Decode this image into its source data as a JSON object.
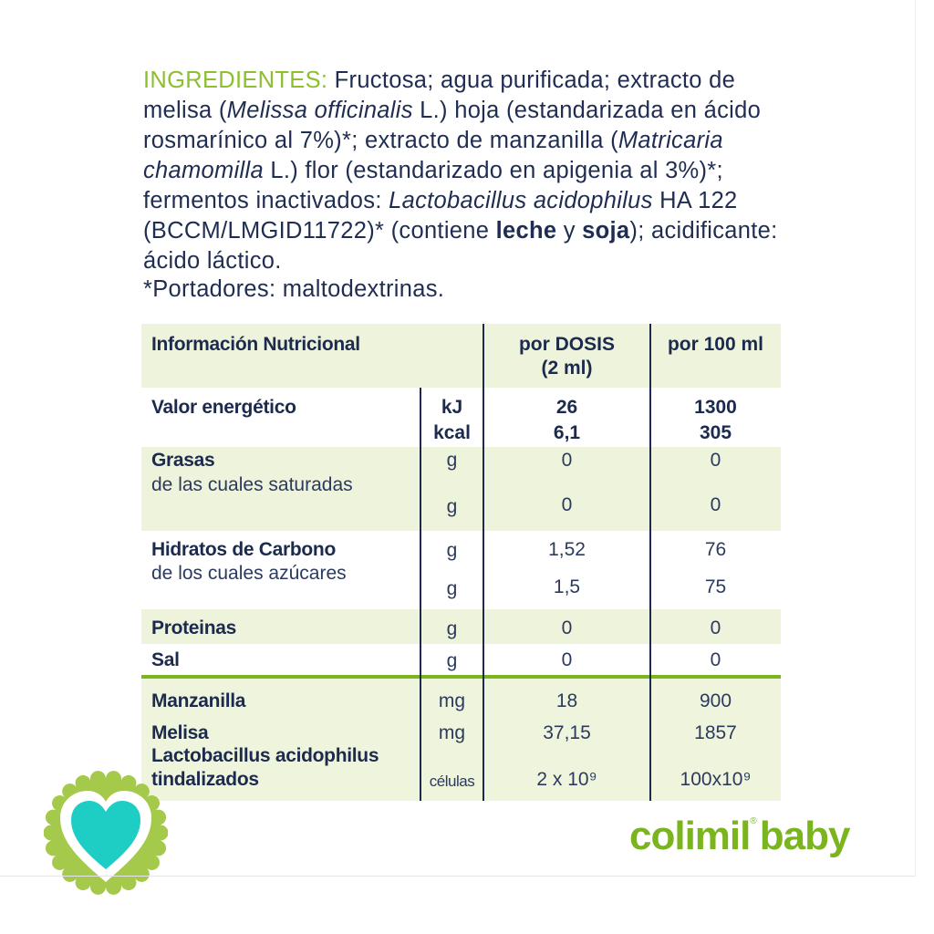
{
  "ingredients": {
    "lines": [
      [
        {
          "t": "INGREDIENTES:",
          "s": "g"
        },
        {
          "t": " Fructosa; agua purificada; extracto de",
          "s": ""
        }
      ],
      [
        {
          "t": "melisa (",
          "s": ""
        },
        {
          "t": "Melissa officinalis",
          "s": "i"
        },
        {
          "t": " L.) hoja (estandarizada en ácido",
          "s": ""
        }
      ],
      [
        {
          "t": "rosmarínico al 7%)*; extracto de manzanilla (",
          "s": ""
        },
        {
          "t": "Matricaria",
          "s": "i"
        }
      ],
      [
        {
          "t": "chamomilla",
          "s": "i"
        },
        {
          "t": " L.) flor (estandarizado en apigenia al 3%)*;",
          "s": ""
        }
      ],
      [
        {
          "t": "fermentos inactivados: ",
          "s": ""
        },
        {
          "t": "Lactobacillus acidophilus",
          "s": "i"
        },
        {
          "t": " HA 122",
          "s": ""
        }
      ],
      [
        {
          "t": "(BCCM/LMGID11722)* (contiene ",
          "s": ""
        },
        {
          "t": "leche",
          "s": "b"
        },
        {
          "t": " y ",
          "s": ""
        },
        {
          "t": "soja",
          "s": "b"
        },
        {
          "t": "); acidificante:",
          "s": ""
        }
      ],
      [
        {
          "t": "ácido láctico.",
          "s": ""
        }
      ]
    ],
    "carriers": "*Portadores: maltodextrinas."
  },
  "table": {
    "header": {
      "title": "Información Nutricional",
      "col1_line1": "por DOSIS",
      "col1_line2": "(2 ml)",
      "col2": "por 100 ml"
    },
    "energy": {
      "label": "Valor energético",
      "unit1": "kJ",
      "unit2": "kcal",
      "dose1": "26",
      "dose2": "6,1",
      "per100_1": "1300",
      "per100_2": "305"
    },
    "fat": {
      "label": "Grasas",
      "sub": "de las cuales saturadas",
      "unit": "g",
      "dose": "0",
      "per100": "0",
      "sub_unit": "g",
      "sub_dose": "0",
      "sub_per100": "0"
    },
    "carbs": {
      "label": "Hidratos de Carbono",
      "sub": "de los cuales azúcares",
      "unit": "g",
      "dose": "1,52",
      "per100": "76",
      "sub_unit": "g",
      "sub_dose": "1,5",
      "sub_per100": "75"
    },
    "protein": {
      "label": "Proteinas",
      "unit": "g",
      "dose": "0",
      "per100": "0"
    },
    "salt": {
      "label": "Sal",
      "unit": "g",
      "dose": "0",
      "per100": "0"
    },
    "chamomile": {
      "label": "Manzanilla",
      "unit": "mg",
      "dose": "18",
      "per100": "900"
    },
    "melissa": {
      "label": "Melisa",
      "unit": "mg",
      "dose": "37,15",
      "per100": "1857"
    },
    "lacto": {
      "label1": "Lactobacillus acidophilus",
      "label2": "tindalizados",
      "unit": "células",
      "dose": "2 x 10⁹",
      "per100": "100x10⁹"
    }
  },
  "brand": {
    "name1": "colimil",
    "reg": "®",
    "name2": "baby"
  },
  "badge": {
    "icon": "heart-icon"
  },
  "colors": {
    "green": "#7ab51d",
    "navy": "#1c2a4e",
    "band": "#eef3dc",
    "teal": "#1ecdc4",
    "badge": "#a5c94a"
  }
}
